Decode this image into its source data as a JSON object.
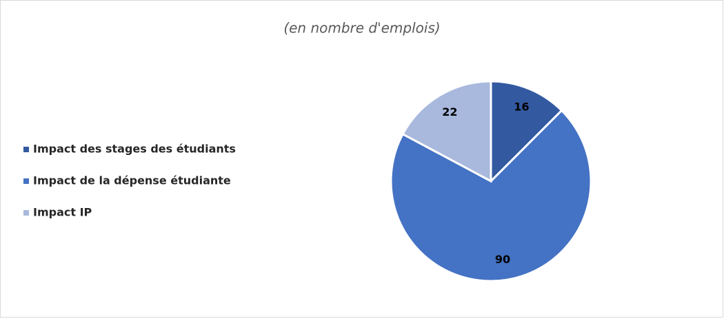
{
  "chart_data": {
    "type": "pie",
    "subtitle": "(en nombre d'emplois)",
    "categories": [
      "Impact des stages des étudiants",
      "Impact de la dépense étudiante",
      "Impact IP"
    ],
    "values": [
      16,
      90,
      22
    ],
    "colors": [
      "#335aa1",
      "#4472c4",
      "#a9b9dd"
    ],
    "legend": "left"
  }
}
